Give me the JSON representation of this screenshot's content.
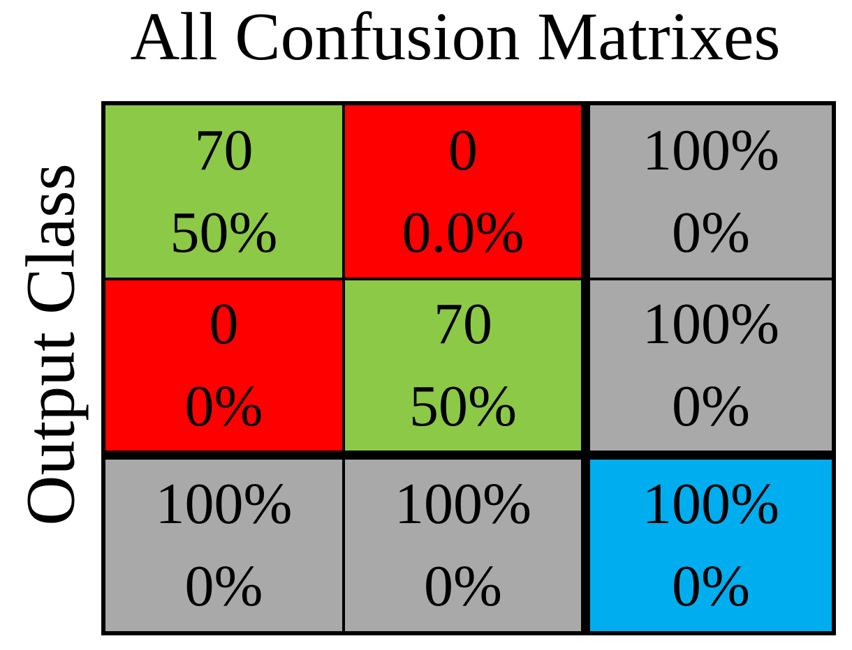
{
  "title": "All Confusion Matrixes",
  "colors": {
    "correct_green": "#8CC947",
    "incorrect_red": "#FF0000",
    "summary_gray": "#A9A9A9",
    "overall_blue": "#00AEEF",
    "border_black": "#000000",
    "background_white": "#FFFFFF",
    "text_black": "#000000"
  },
  "chart_data": {
    "type": "table",
    "subtype": "confusion-matrix",
    "title": "All Confusion Matrixes",
    "xlabel": "",
    "ylabel": "Output Class",
    "n_rows": 3,
    "n_cols": 3,
    "legend_position": "none",
    "grid": "thick black separators before last row and last column",
    "cells": [
      [
        {
          "line1": "70",
          "line2": "50%",
          "role": "correct-diagonal",
          "color": "#8CC947"
        },
        {
          "line1": "0",
          "line2": "0.0%",
          "role": "misclassified",
          "color": "#FF0000"
        },
        {
          "line1": "100%",
          "line2": "0%",
          "role": "row-summary",
          "color": "#A9A9A9"
        }
      ],
      [
        {
          "line1": "0",
          "line2": "0%",
          "role": "misclassified",
          "color": "#FF0000"
        },
        {
          "line1": "70",
          "line2": "50%",
          "role": "correct-diagonal",
          "color": "#8CC947"
        },
        {
          "line1": "100%",
          "line2": "0%",
          "role": "row-summary",
          "color": "#A9A9A9"
        }
      ],
      [
        {
          "line1": "100%",
          "line2": "0%",
          "role": "column-summary",
          "color": "#A9A9A9"
        },
        {
          "line1": "100%",
          "line2": "0%",
          "role": "column-summary",
          "color": "#A9A9A9"
        },
        {
          "line1": "100%",
          "line2": "0%",
          "role": "overall-accuracy",
          "color": "#00AEEF"
        }
      ]
    ]
  }
}
